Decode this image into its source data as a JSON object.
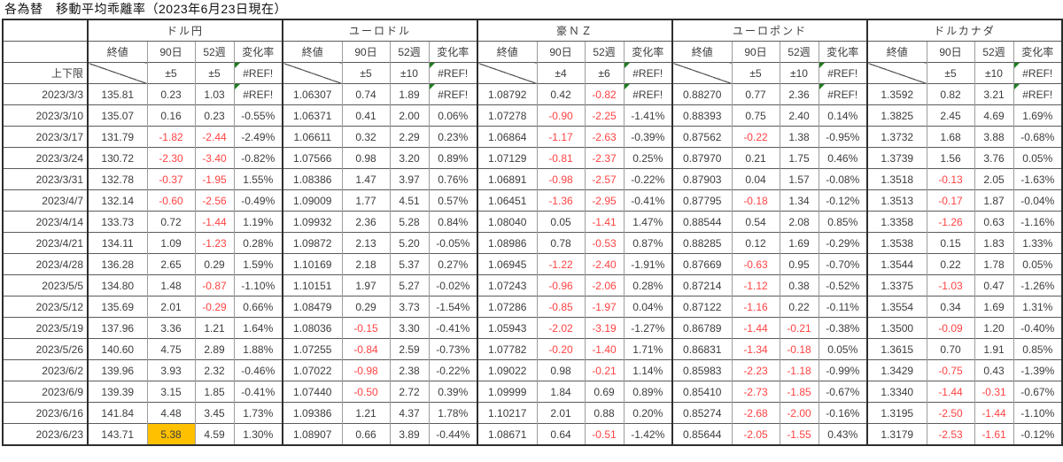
{
  "title": "各為替　移動平均乖離率（2023年6月23日現在）",
  "colors": {
    "negative_text": "#ff4343",
    "highlight_bg": "#ffc000",
    "error_triangle": "#1e7e1e",
    "border_dark": "#2e2e2e",
    "border_light": "#9c9c9c",
    "text": "#3c3c3c"
  },
  "table": {
    "corner": "",
    "limits_label": "上下限",
    "sub_headers": [
      "終値",
      "90日",
      "52週",
      "変化率"
    ],
    "error_value": "#REF!",
    "groups": [
      {
        "name": "ドル円",
        "limits": [
          "±5",
          "±5"
        ]
      },
      {
        "name": "ユーロドル",
        "limits": [
          "±5",
          "±10"
        ]
      },
      {
        "name": "豪ＮＺ",
        "limits": [
          "±4",
          "±6"
        ]
      },
      {
        "name": "ユーロポンド",
        "limits": [
          "±5",
          "±10"
        ]
      },
      {
        "name": "ドルカナダ",
        "limits": [
          "±5",
          "±10"
        ]
      }
    ],
    "highlight": {
      "date": "2023/6/23",
      "group_index": 0,
      "col_index": 1
    },
    "rows": [
      {
        "date": "2023/3/3",
        "values": [
          "135.81",
          "0.23",
          "1.03",
          "#REF!",
          "1.06307",
          "0.74",
          "1.89",
          "#REF!",
          "1.08792",
          "0.42",
          "-0.82",
          "#REF!",
          "0.88270",
          "0.77",
          "2.36",
          "#REF!",
          "1.3592",
          "0.82",
          "3.21",
          "#REF!"
        ]
      },
      {
        "date": "2023/3/10",
        "values": [
          "135.07",
          "0.16",
          "0.23",
          "-0.55%",
          "1.06371",
          "0.41",
          "2.00",
          "0.06%",
          "1.07278",
          "-0.90",
          "-2.25",
          "-1.41%",
          "0.88393",
          "0.75",
          "2.40",
          "0.14%",
          "1.3825",
          "2.45",
          "4.69",
          "1.69%"
        ]
      },
      {
        "date": "2023/3/17",
        "values": [
          "131.79",
          "-1.82",
          "-2.44",
          "-2.49%",
          "1.06611",
          "0.32",
          "2.29",
          "0.23%",
          "1.06864",
          "-1.17",
          "-2.63",
          "-0.39%",
          "0.87562",
          "-0.22",
          "1.38",
          "-0.95%",
          "1.3732",
          "1.68",
          "3.88",
          "-0.68%"
        ]
      },
      {
        "date": "2023/3/24",
        "values": [
          "130.72",
          "-2.30",
          "-3.40",
          "-0.82%",
          "1.07566",
          "0.98",
          "3.20",
          "0.89%",
          "1.07129",
          "-0.81",
          "-2.37",
          "0.25%",
          "0.87970",
          "0.21",
          "1.75",
          "0.46%",
          "1.3739",
          "1.56",
          "3.76",
          "0.05%"
        ]
      },
      {
        "date": "2023/3/31",
        "values": [
          "132.78",
          "-0.37",
          "-1.95",
          "1.55%",
          "1.08386",
          "1.47",
          "3.97",
          "0.76%",
          "1.06891",
          "-0.98",
          "-2.57",
          "-0.22%",
          "0.87903",
          "0.04",
          "1.57",
          "-0.08%",
          "1.3518",
          "-0.13",
          "2.05",
          "-1.63%"
        ]
      },
      {
        "date": "2023/4/7",
        "values": [
          "132.14",
          "-0.60",
          "-2.56",
          "-0.49%",
          "1.09009",
          "1.77",
          "4.51",
          "0.57%",
          "1.06451",
          "-1.36",
          "-2.95",
          "-0.41%",
          "0.87795",
          "-0.18",
          "1.34",
          "-0.12%",
          "1.3513",
          "-0.17",
          "1.87",
          "-0.04%"
        ]
      },
      {
        "date": "2023/4/14",
        "values": [
          "133.73",
          "0.72",
          "-1.44",
          "1.19%",
          "1.09932",
          "2.36",
          "5.28",
          "0.84%",
          "1.08040",
          "0.05",
          "-1.41",
          "1.47%",
          "0.88544",
          "0.54",
          "2.08",
          "0.85%",
          "1.3358",
          "-1.26",
          "0.63",
          "-1.16%"
        ]
      },
      {
        "date": "2023/4/21",
        "values": [
          "134.11",
          "1.09",
          "-1.23",
          "0.28%",
          "1.09872",
          "2.13",
          "5.20",
          "-0.05%",
          "1.08986",
          "0.78",
          "-0.53",
          "0.87%",
          "0.88285",
          "0.12",
          "1.69",
          "-0.29%",
          "1.3538",
          "0.15",
          "1.83",
          "1.33%"
        ]
      },
      {
        "date": "2023/4/28",
        "values": [
          "136.28",
          "2.65",
          "0.29",
          "1.59%",
          "1.10169",
          "2.18",
          "5.37",
          "0.27%",
          "1.06945",
          "-1.22",
          "-2.40",
          "-1.91%",
          "0.87669",
          "-0.63",
          "0.95",
          "-0.70%",
          "1.3544",
          "0.22",
          "1.78",
          "0.05%"
        ]
      },
      {
        "date": "2023/5/5",
        "values": [
          "134.80",
          "1.48",
          "-0.87",
          "-1.10%",
          "1.10151",
          "1.97",
          "5.27",
          "-0.02%",
          "1.07243",
          "-0.96",
          "-2.06",
          "0.28%",
          "0.87214",
          "-1.12",
          "0.38",
          "-0.52%",
          "1.3375",
          "-1.03",
          "0.47",
          "-1.26%"
        ]
      },
      {
        "date": "2023/5/12",
        "values": [
          "135.69",
          "2.01",
          "-0.29",
          "0.66%",
          "1.08479",
          "0.29",
          "3.73",
          "-1.54%",
          "1.07286",
          "-0.85",
          "-1.97",
          "0.04%",
          "0.87122",
          "-1.16",
          "0.22",
          "-0.11%",
          "1.3554",
          "0.34",
          "1.69",
          "1.31%"
        ]
      },
      {
        "date": "2023/5/19",
        "values": [
          "137.96",
          "3.36",
          "1.21",
          "1.64%",
          "1.08036",
          "-0.15",
          "3.30",
          "-0.41%",
          "1.05943",
          "-2.02",
          "-3.19",
          "-1.27%",
          "0.86789",
          "-1.44",
          "-0.21",
          "-0.38%",
          "1.3500",
          "-0.09",
          "1.20",
          "-0.40%"
        ]
      },
      {
        "date": "2023/5/26",
        "values": [
          "140.60",
          "4.75",
          "2.89",
          "1.88%",
          "1.07255",
          "-0.84",
          "2.59",
          "-0.73%",
          "1.07782",
          "-0.20",
          "-1.40",
          "1.71%",
          "0.86831",
          "-1.34",
          "-0.18",
          "0.05%",
          "1.3615",
          "0.70",
          "1.91",
          "0.85%"
        ]
      },
      {
        "date": "2023/6/2",
        "values": [
          "139.96",
          "3.93",
          "2.32",
          "-0.46%",
          "1.07022",
          "-0.98",
          "2.38",
          "-0.22%",
          "1.09022",
          "0.98",
          "-0.21",
          "1.14%",
          "0.85983",
          "-2.23",
          "-1.18",
          "-0.99%",
          "1.3429",
          "-0.75",
          "0.43",
          "-1.39%"
        ]
      },
      {
        "date": "2023/6/9",
        "values": [
          "139.39",
          "3.15",
          "1.85",
          "-0.41%",
          "1.07440",
          "-0.50",
          "2.72",
          "0.39%",
          "1.09999",
          "1.84",
          "0.69",
          "0.89%",
          "0.85410",
          "-2.73",
          "-1.85",
          "-0.67%",
          "1.3340",
          "-1.44",
          "-0.31",
          "-0.67%"
        ]
      },
      {
        "date": "2023/6/16",
        "values": [
          "141.84",
          "4.48",
          "3.45",
          "1.73%",
          "1.09386",
          "1.21",
          "4.37",
          "1.78%",
          "1.10217",
          "2.01",
          "0.88",
          "0.20%",
          "0.85274",
          "-2.68",
          "-2.00",
          "-0.16%",
          "1.3195",
          "-2.50",
          "-1.44",
          "-1.10%"
        ]
      },
      {
        "date": "2023/6/23",
        "values": [
          "143.71",
          "5.38",
          "4.59",
          "1.30%",
          "1.08907",
          "0.66",
          "3.89",
          "-0.44%",
          "1.08671",
          "0.64",
          "-0.51",
          "-1.42%",
          "0.85644",
          "-2.05",
          "-1.55",
          "0.43%",
          "1.3179",
          "-2.53",
          "-1.61",
          "-0.12%"
        ]
      }
    ]
  }
}
